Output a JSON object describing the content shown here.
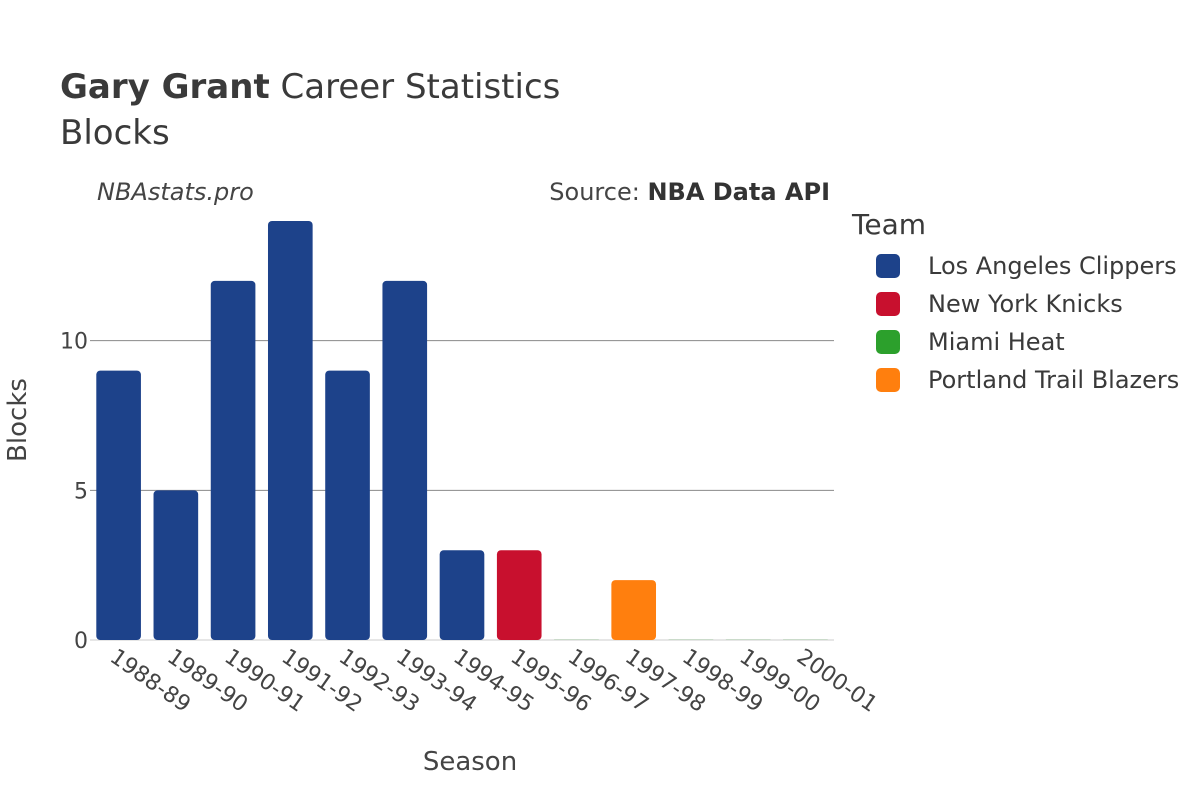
{
  "title": {
    "player": "Gary Grant",
    "rest": " Career Statistics",
    "subtitle": "Blocks"
  },
  "watermark": "NBAstats.pro",
  "source": {
    "prefix": "Source: ",
    "name": "NBA Data API"
  },
  "legend": {
    "title": "Team",
    "items": [
      {
        "label": "Los Angeles Clippers",
        "color": "#1d428a"
      },
      {
        "label": "New York Knicks",
        "color": "#c8102e"
      },
      {
        "label": "Miami Heat",
        "color": "#2ca02c"
      },
      {
        "label": "Portland Trail Blazers",
        "color": "#ff7f0e"
      }
    ]
  },
  "chart_data": {
    "type": "bar",
    "xlabel": "Season",
    "ylabel": "Blocks",
    "ylim": [
      0,
      14.7
    ],
    "yticks": [
      0,
      5,
      10
    ],
    "grid": true,
    "legend_position": "right",
    "categories": [
      "1988-89",
      "1989-90",
      "1990-91",
      "1991-92",
      "1992-93",
      "1993-94",
      "1994-95",
      "1995-96",
      "1996-97",
      "1997-98",
      "1998-99",
      "1999-00",
      "2000-01"
    ],
    "series": [
      {
        "name": "Los Angeles Clippers",
        "color": "#1d428a",
        "values": [
          9,
          5,
          12,
          14,
          9,
          12,
          3,
          null,
          null,
          null,
          null,
          null,
          null
        ]
      },
      {
        "name": "New York Knicks",
        "color": "#c8102e",
        "values": [
          null,
          null,
          null,
          null,
          null,
          null,
          null,
          3,
          null,
          null,
          null,
          null,
          null
        ]
      },
      {
        "name": "Miami Heat",
        "color": "#2ca02c",
        "values": [
          null,
          null,
          null,
          null,
          null,
          null,
          null,
          null,
          0,
          null,
          0,
          0,
          0
        ]
      },
      {
        "name": "Portland Trail Blazers",
        "color": "#ff7f0e",
        "values": [
          null,
          null,
          null,
          null,
          null,
          null,
          null,
          null,
          null,
          2,
          null,
          null,
          null
        ]
      }
    ]
  }
}
